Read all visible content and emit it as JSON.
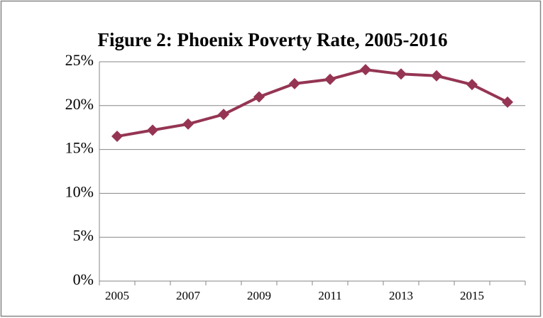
{
  "chart_data": {
    "type": "line",
    "title": "Figure 2: Phoenix Poverty Rate, 2005-2016",
    "categories": [
      "2005",
      null,
      "2007",
      null,
      "2009",
      null,
      "2011",
      null,
      "2013",
      null,
      "2015",
      null
    ],
    "series": [
      {
        "name": "Phoenix Poverty Rate",
        "color": "#953553",
        "values": [
          16.5,
          17.2,
          17.9,
          19.0,
          21.0,
          22.5,
          23.0,
          24.1,
          23.6,
          23.4,
          22.4,
          20.4
        ]
      }
    ],
    "ylim": [
      0,
      25
    ],
    "yticks": [
      {
        "value": 0,
        "label": "0%"
      },
      {
        "value": 5,
        "label": "5%"
      },
      {
        "value": 10,
        "label": "10%"
      },
      {
        "value": 15,
        "label": "15%"
      },
      {
        "value": 20,
        "label": "20%"
      },
      {
        "value": 25,
        "label": "25%"
      }
    ],
    "grid": true,
    "legend": false
  }
}
